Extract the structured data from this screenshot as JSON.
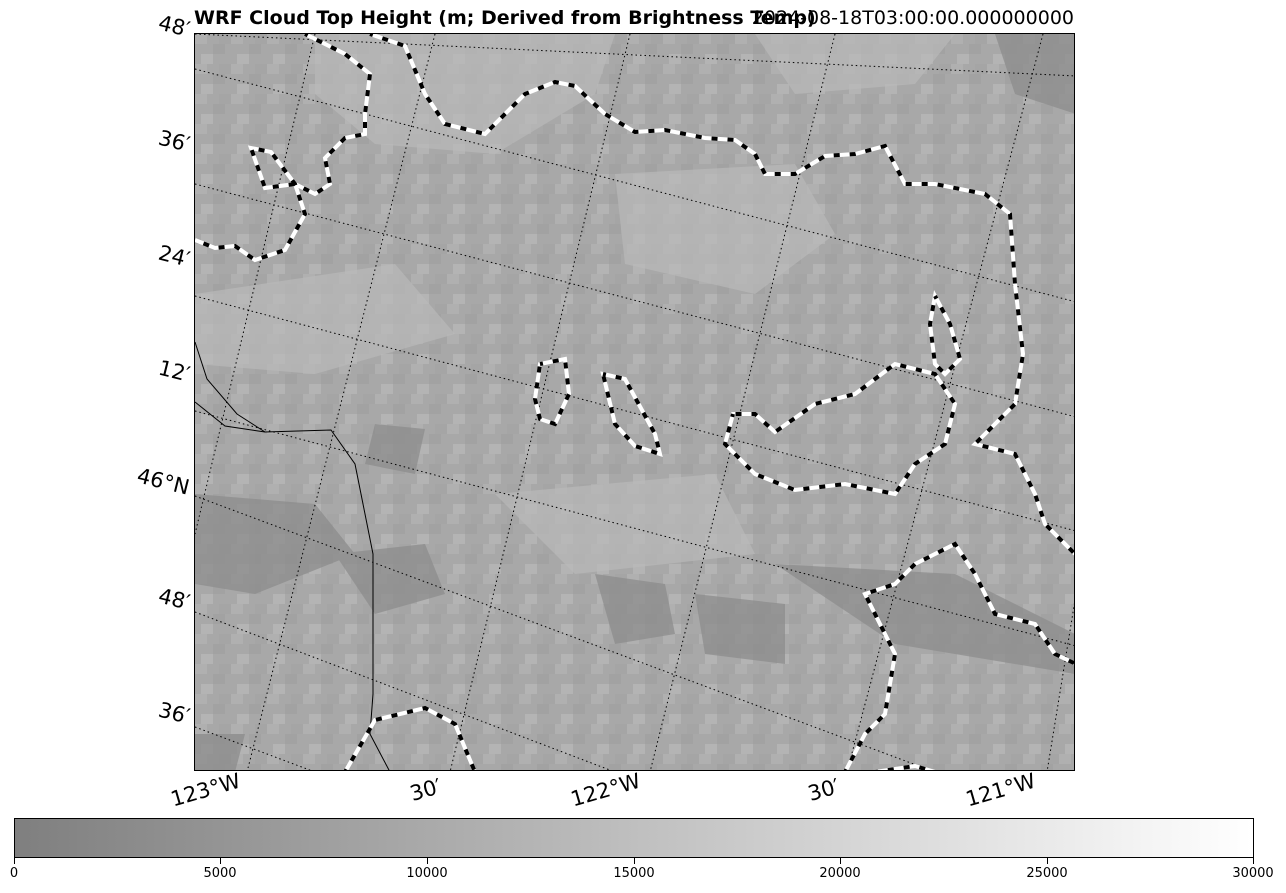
{
  "map": {
    "title": "WRF Cloud Top Height (m; Derived from Brightness Temp)",
    "timestamp": "2024-08-18T03:00:00.000000000",
    "lat_labels": [
      "48′",
      "36′",
      "24′",
      "12′",
      "46°N",
      "48′",
      "36′"
    ],
    "lon_labels": [
      "123°W",
      "30′",
      "122°W",
      "30′",
      "121°W"
    ],
    "colors": {
      "low": "#7f7f7f",
      "high": "#ffffff",
      "contour_a": "#ffffff",
      "contour_b": "#000000"
    }
  },
  "colorbar": {
    "ticks": [
      "0",
      "5000",
      "10000",
      "15000",
      "20000",
      "25000",
      "30000"
    ],
    "min": 0,
    "max": 30000
  }
}
